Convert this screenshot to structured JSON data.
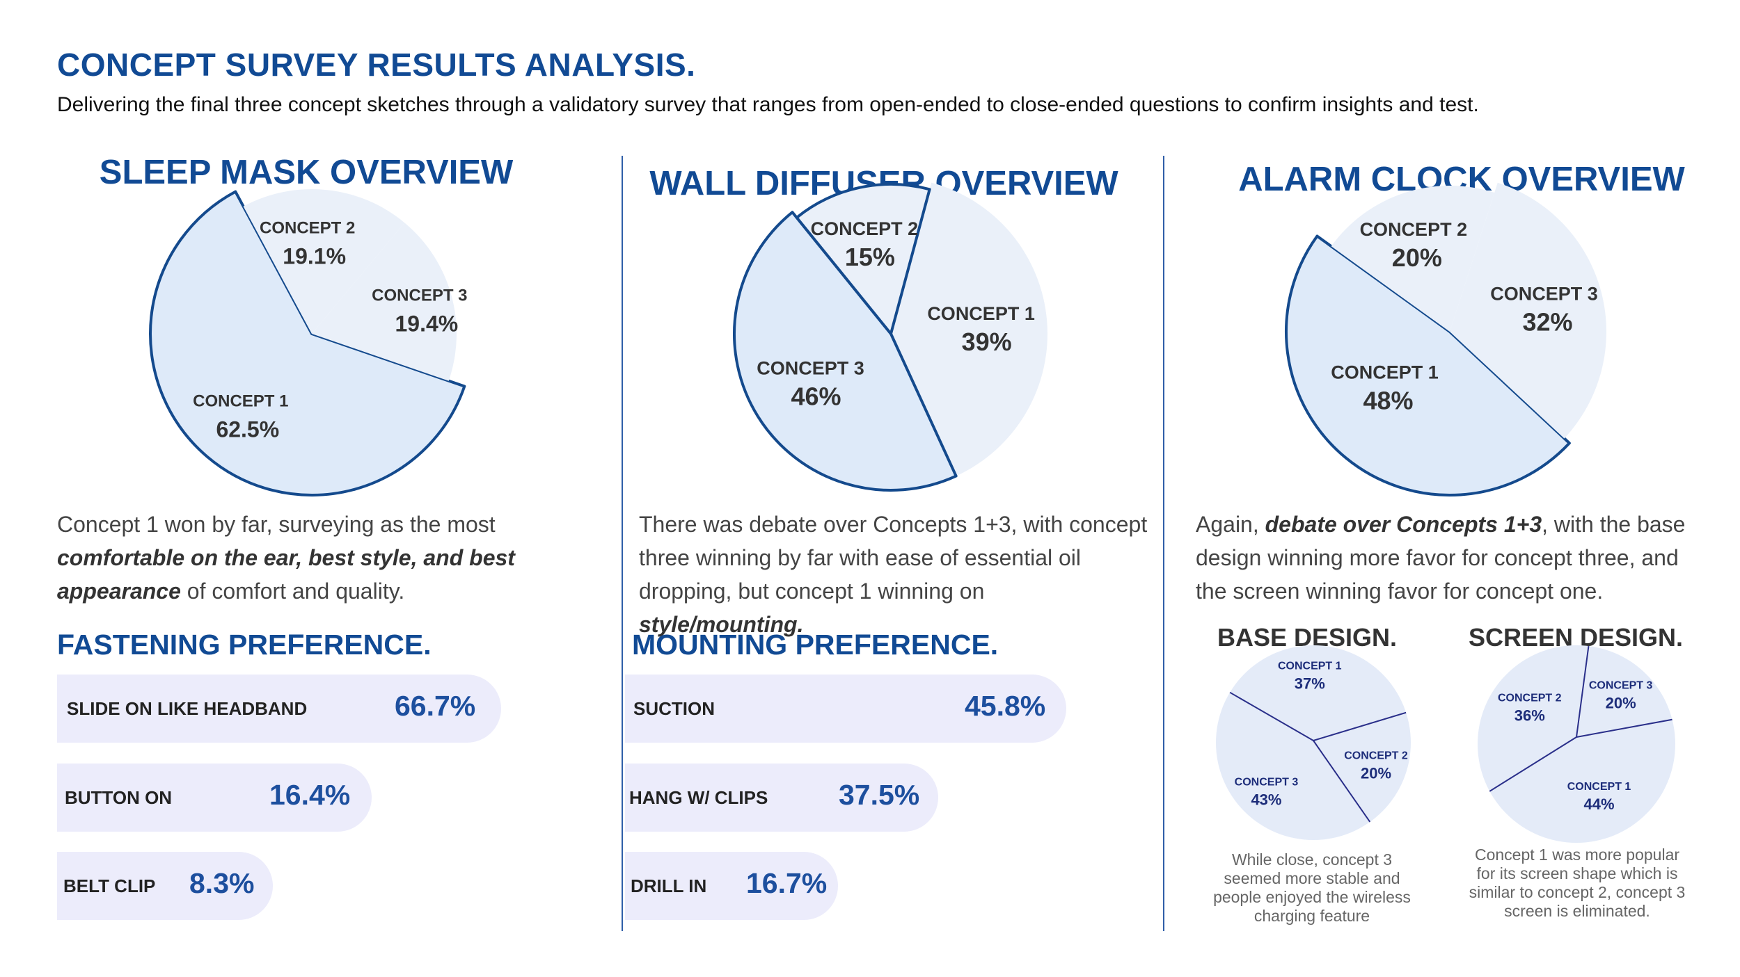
{
  "header": {
    "title": "CONCEPT SURVEY RESULTS ANALYSIS.",
    "subtitle": "Delivering the final three concept sketches through a validatory survey that ranges from open-ended to close-ended questions to confirm insights and test."
  },
  "colors": {
    "accent": "#114a94",
    "pie_main": "#deeaf9",
    "pie_light": "#eaf0f9",
    "pie_stroke": "#144a8d",
    "bar_bg": "#ececfb",
    "small_pie": "#e4ebf8",
    "small_line": "#2a2f8a"
  },
  "chart_data": [
    {
      "type": "pie",
      "title": "SLEEP MASK OVERVIEW",
      "slices": [
        {
          "label": "CONCEPT 1",
          "value": 62.5,
          "text": "62.5%"
        },
        {
          "label": "CONCEPT 2",
          "value": 19.1,
          "text": "19.1%"
        },
        {
          "label": "CONCEPT 3",
          "value": 19.4,
          "text": "19.4%"
        }
      ]
    },
    {
      "type": "pie",
      "title": "WALL DIFFUSER OVERVIEW",
      "slices": [
        {
          "label": "CONCEPT 1",
          "value": 39,
          "text": "39%"
        },
        {
          "label": "CONCEPT 3",
          "value": 46,
          "text": "46%"
        },
        {
          "label": "CONCEPT 2",
          "value": 15,
          "text": "15%"
        }
      ]
    },
    {
      "type": "pie",
      "title": "ALARM CLOCK OVERVIEW",
      "slices": [
        {
          "label": "CONCEPT 1",
          "value": 48,
          "text": "48%"
        },
        {
          "label": "CONCEPT 2",
          "value": 20,
          "text": "20%"
        },
        {
          "label": "CONCEPT 3",
          "value": 32,
          "text": "32%"
        }
      ]
    },
    {
      "type": "bar",
      "title": "FASTENING PREFERENCE.",
      "categories": [
        "SLIDE ON LIKE HEADBAND",
        "BUTTON ON",
        "BELT CLIP"
      ],
      "values": [
        66.7,
        16.4,
        8.3
      ],
      "labels": [
        "66.7%",
        "16.4%",
        "8.3%"
      ]
    },
    {
      "type": "bar",
      "title": "MOUNTING PREFERENCE.",
      "categories": [
        "SUCTION",
        "HANG W/ CLIPS",
        "DRILL IN"
      ],
      "values": [
        45.8,
        37.5,
        16.7
      ],
      "labels": [
        "45.8%",
        "37.5%",
        "16.7%"
      ]
    },
    {
      "type": "pie",
      "title": "BASE DESIGN.",
      "slices": [
        {
          "label": "CONCEPT 1",
          "value": 37,
          "text": "37%"
        },
        {
          "label": "CONCEPT 2",
          "value": 20,
          "text": "20%"
        },
        {
          "label": "CONCEPT 3",
          "value": 43,
          "text": "43%"
        }
      ]
    },
    {
      "type": "pie",
      "title": "SCREEN DESIGN.",
      "slices": [
        {
          "label": "CONCEPT 2",
          "value": 36,
          "text": "36%"
        },
        {
          "label": "CONCEPT 3",
          "value": 20,
          "text": "20%"
        },
        {
          "label": "CONCEPT 1",
          "value": 44,
          "text": "44%"
        }
      ]
    }
  ],
  "paragraphs": {
    "sleep": {
      "p1": "Concept 1 won by far, surveying as the most ",
      "b1": "comfortable on the ear, best style, and best appearance",
      "p2": " of comfort and quality."
    },
    "diffuser": {
      "p1": "There was debate over Concepts 1+3, with concept three winning by far with ease of essential oil dropping, but concept 1 winning on ",
      "b1": "style/mounting."
    },
    "alarm": {
      "p1": "Again, ",
      "b1": "debate over Concepts 1+3",
      "p2": ", with the base design winning more favor for concept three, and the screen winning favor for concept one."
    }
  },
  "notes": {
    "base": "While close, concept 3 seemed more stable and people enjoyed the wireless charging feature",
    "screen": "Concept 1 was more popular for its screen shape which is similar to concept 2, concept 3 screen is eliminated."
  }
}
